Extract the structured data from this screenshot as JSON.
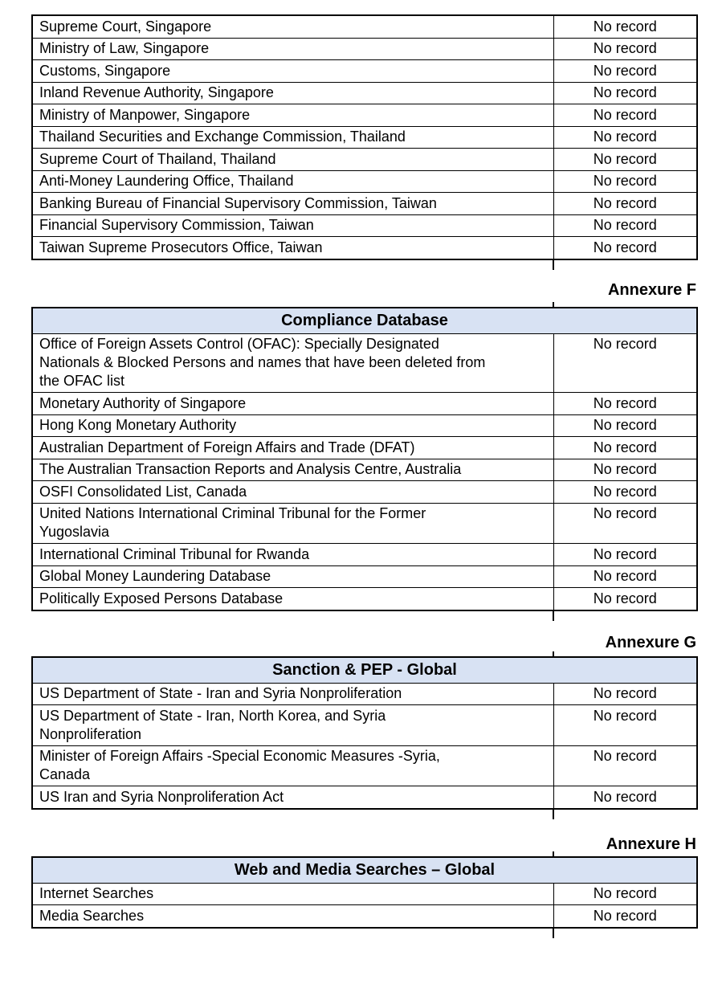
{
  "styles": {
    "header_bg": "#d8e2f3",
    "border_color": "#000000",
    "text_color": "#000000"
  },
  "sections": [
    {
      "annexure_label": null,
      "title": null,
      "rows": [
        {
          "source": "Supreme Court, Singapore",
          "result": "No record"
        },
        {
          "source": "Ministry of Law, Singapore",
          "result": "No record"
        },
        {
          "source": "Customs, Singapore",
          "result": "No record"
        },
        {
          "source": "Inland Revenue Authority, Singapore",
          "result": "No record"
        },
        {
          "source": "Ministry of Manpower, Singapore",
          "result": "No record"
        },
        {
          "source": "Thailand Securities and Exchange Commission, Thailand",
          "result": "No record"
        },
        {
          "source": "Supreme Court of Thailand, Thailand",
          "result": "No record"
        },
        {
          "source": "Anti-Money Laundering Office, Thailand",
          "result": "No record"
        },
        {
          "source": "Banking Bureau of Financial Supervisory Commission, Taiwan",
          "result": "No record"
        },
        {
          "source": "Financial Supervisory Commission, Taiwan",
          "result": "No record"
        },
        {
          "source": "Taiwan Supreme Prosecutors Office, Taiwan",
          "result": "No record"
        }
      ]
    },
    {
      "annexure_label": "Annexure F",
      "title": "Compliance Database",
      "rows": [
        {
          "source": "Office of Foreign Assets Control (OFAC): Specially Designated\nNationals & Blocked Persons and names that have been deleted from\nthe OFAC list",
          "result": "No record"
        },
        {
          "source": "Monetary Authority of Singapore",
          "result": "No record"
        },
        {
          "source": "Hong Kong Monetary Authority",
          "result": "No record"
        },
        {
          "source": "Australian Department of Foreign Affairs and Trade (DFAT)",
          "result": "No record"
        },
        {
          "source": "The Australian Transaction Reports and Analysis Centre, Australia",
          "result": "No record"
        },
        {
          "source": "OSFI Consolidated List, Canada",
          "result": "No record"
        },
        {
          "source": "United Nations International Criminal Tribunal for the Former\nYugoslavia",
          "result": "No record"
        },
        {
          "source": "International Criminal Tribunal for Rwanda",
          "result": "No record"
        },
        {
          "source": "Global Money Laundering Database",
          "result": "No record"
        },
        {
          "source": "Politically Exposed Persons Database",
          "result": "No record"
        }
      ]
    },
    {
      "annexure_label": "Annexure G",
      "title": "Sanction & PEP - Global",
      "rows": [
        {
          "source": "US Department of State - Iran and Syria Nonproliferation",
          "result": "No record"
        },
        {
          "source": "US Department of State - Iran, North Korea, and Syria\nNonproliferation",
          "result": "No record"
        },
        {
          "source": "Minister of Foreign Affairs -Special Economic Measures -Syria,\nCanada",
          "result": "No record"
        },
        {
          "source": "US Iran and Syria Nonproliferation Act",
          "result": "No record"
        }
      ]
    },
    {
      "annexure_label": "Annexure H",
      "title": "Web and Media Searches – Global",
      "rows": [
        {
          "source": "Internet Searches",
          "result": "No record"
        },
        {
          "source": "Media Searches",
          "result": "No record"
        }
      ]
    }
  ]
}
